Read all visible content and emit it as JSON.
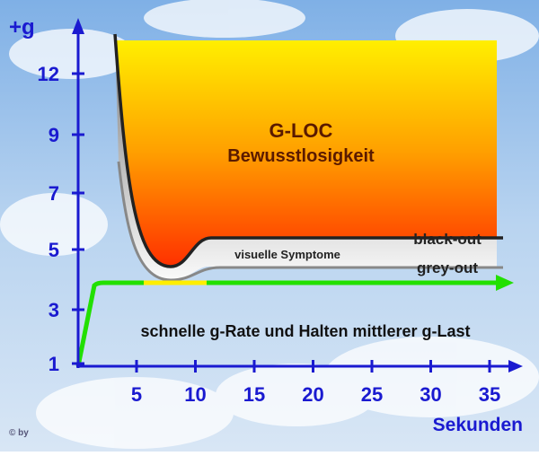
{
  "diagram": {
    "y_axis": {
      "label": "+g",
      "ticks": [
        1,
        3,
        5,
        7,
        9,
        12
      ]
    },
    "x_axis": {
      "label": "Sekunden",
      "ticks": [
        5,
        10,
        15,
        20,
        25,
        30,
        35
      ]
    },
    "regions": {
      "gloc_title": "G-LOC",
      "gloc_subtitle": "Bewusstlosigkeit",
      "visual": "visuelle Symptome"
    },
    "curves": {
      "black_out": "black-out",
      "grey_out": "grey-out"
    },
    "caption": "schnelle g-Rate und Halten mittlerer g-Last",
    "copyright": "© by"
  }
}
